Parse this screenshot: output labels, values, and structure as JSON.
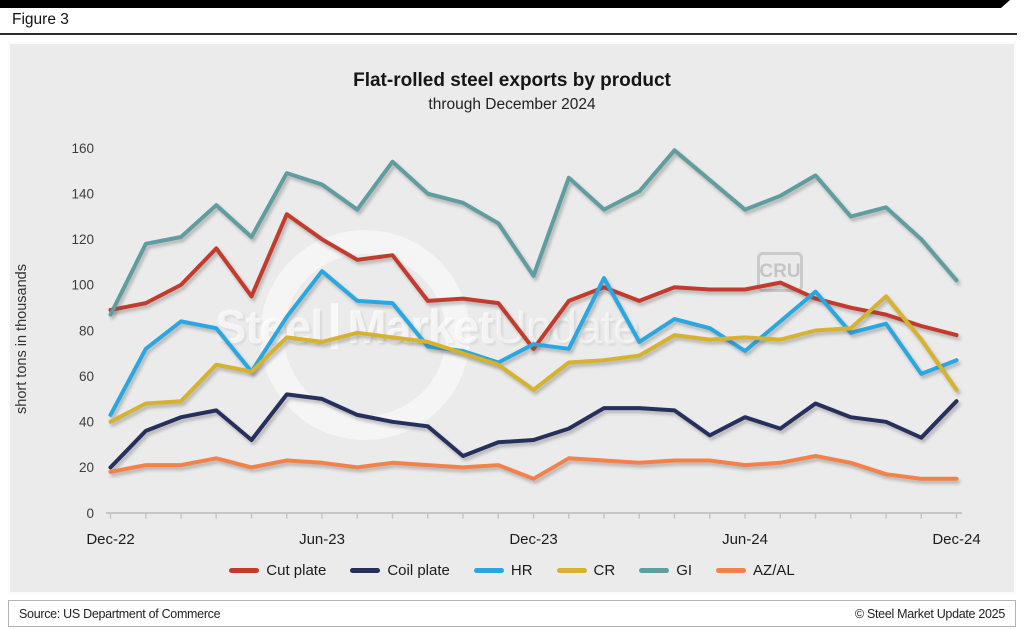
{
  "figure_label": "Figure 3",
  "watermark": {
    "steel": "Steel",
    "market": "Market",
    "update": "Update",
    "cru": "CRU"
  },
  "footer": {
    "source": "Source: US Department of Commerce",
    "copyright": "© Steel Market Update 2025"
  },
  "chart_data": {
    "type": "line",
    "title": "Flat-rolled steel exports by product",
    "subtitle": "through December 2024",
    "ylabel": "short tons in thousands",
    "ylim": [
      0,
      160
    ],
    "yticks": [
      0,
      20,
      40,
      60,
      80,
      100,
      120,
      140,
      160
    ],
    "grid": false,
    "legend_position": "bottom",
    "x": [
      "Dec-22",
      "Jan-23",
      "Feb-23",
      "Mar-23",
      "Apr-23",
      "May-23",
      "Jun-23",
      "Jul-23",
      "Aug-23",
      "Sep-23",
      "Oct-23",
      "Nov-23",
      "Dec-23",
      "Jan-24",
      "Feb-24",
      "Mar-24",
      "Apr-24",
      "May-24",
      "Jun-24",
      "Jul-24",
      "Aug-24",
      "Sep-24",
      "Oct-24",
      "Nov-24",
      "Dec-24"
    ],
    "xticks_shown": [
      {
        "index": 0,
        "label": "Dec-22"
      },
      {
        "index": 6,
        "label": "Jun-23"
      },
      {
        "index": 12,
        "label": "Dec-23"
      },
      {
        "index": 18,
        "label": "Jun-24"
      },
      {
        "index": 24,
        "label": "Dec-24"
      }
    ],
    "series": [
      {
        "name": "Cut plate",
        "color": "#c23b2c",
        "values": [
          89,
          92,
          100,
          116,
          95,
          131,
          120,
          111,
          113,
          93,
          94,
          92,
          72,
          93,
          99,
          93,
          99,
          98,
          98,
          101,
          94,
          90,
          87,
          82,
          78
        ]
      },
      {
        "name": "Coil plate",
        "color": "#26305c",
        "values": [
          20,
          36,
          42,
          45,
          32,
          52,
          50,
          43,
          40,
          38,
          25,
          31,
          32,
          37,
          46,
          46,
          45,
          34,
          42,
          37,
          48,
          42,
          40,
          33,
          49
        ]
      },
      {
        "name": "HR",
        "color": "#2aa7e0",
        "values": [
          43,
          72,
          84,
          81,
          62,
          86,
          106,
          93,
          92,
          73,
          71,
          66,
          74,
          72,
          103,
          75,
          85,
          81,
          71,
          84,
          97,
          79,
          83,
          61,
          67
        ]
      },
      {
        "name": "CR",
        "color": "#d6b22f",
        "values": [
          40,
          48,
          49,
          65,
          62,
          77,
          75,
          79,
          77,
          75,
          70,
          65,
          54,
          66,
          67,
          69,
          78,
          76,
          77,
          76,
          80,
          81,
          95,
          76,
          54
        ]
      },
      {
        "name": "GI",
        "color": "#5f9da0",
        "values": [
          87,
          118,
          121,
          135,
          121,
          149,
          144,
          133,
          154,
          140,
          136,
          127,
          104,
          147,
          133,
          141,
          159,
          146,
          133,
          139,
          148,
          130,
          134,
          120,
          102
        ]
      },
      {
        "name": "AZ/AL",
        "color": "#f2824a",
        "values": [
          18,
          21,
          21,
          24,
          20,
          23,
          22,
          20,
          22,
          21,
          20,
          21,
          15,
          24,
          23,
          22,
          23,
          23,
          21,
          22,
          25,
          22,
          17,
          15,
          15
        ]
      }
    ]
  }
}
